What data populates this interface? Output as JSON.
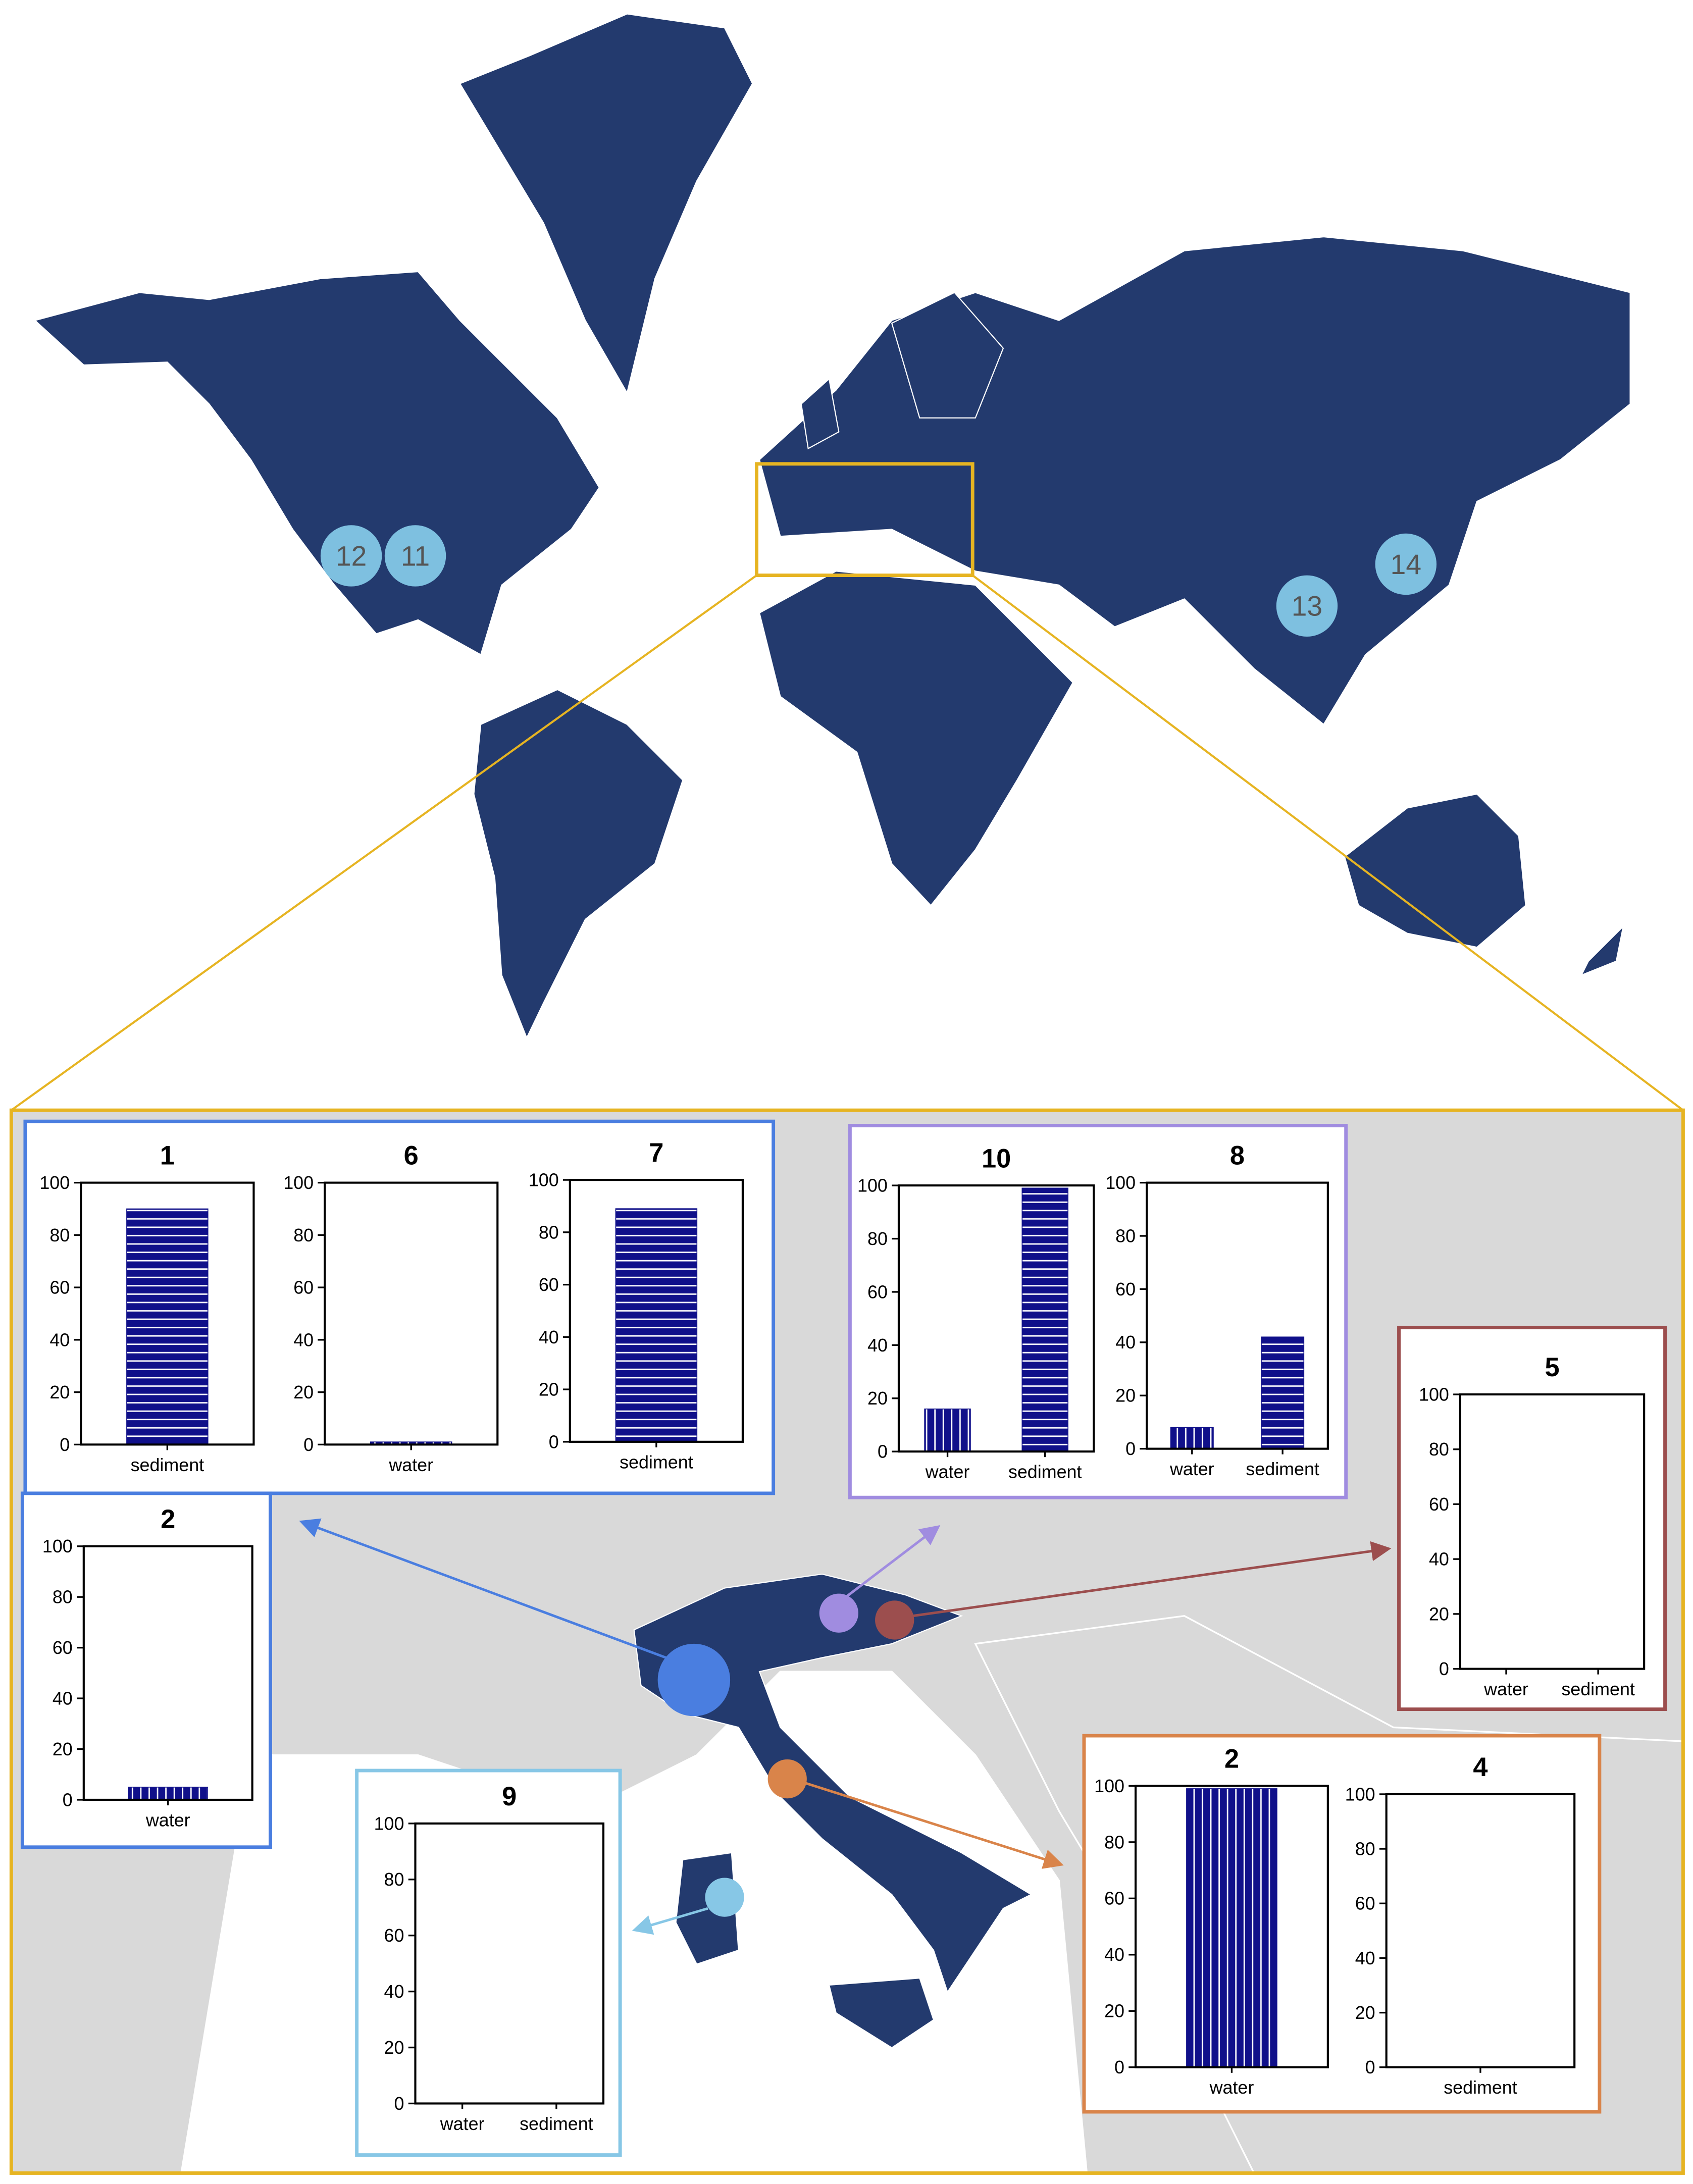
{
  "map": {
    "markers": [
      {
        "label": "12"
      },
      {
        "label": "11"
      },
      {
        "label": "13"
      },
      {
        "label": "14"
      }
    ]
  },
  "chart_data": [
    {
      "type": "bar",
      "title": "1",
      "categories": [
        "sediment"
      ],
      "values": [
        90
      ],
      "hatch": [
        "horizontal"
      ],
      "color": "#10108a",
      "ylim": [
        0,
        100
      ],
      "yticks": [
        0,
        20,
        40,
        60,
        80,
        100
      ]
    },
    {
      "type": "bar",
      "title": "6",
      "categories": [
        "water"
      ],
      "values": [
        1
      ],
      "hatch": [
        "vertical"
      ],
      "color": "#10108a",
      "ylim": [
        0,
        100
      ],
      "yticks": [
        0,
        20,
        40,
        60,
        80,
        100
      ]
    },
    {
      "type": "bar",
      "title": "7",
      "categories": [
        "sediment"
      ],
      "values": [
        89
      ],
      "hatch": [
        "horizontal"
      ],
      "color": "#10108a",
      "ylim": [
        0,
        100
      ],
      "yticks": [
        0,
        20,
        40,
        60,
        80,
        100
      ]
    },
    {
      "type": "bar",
      "title": "2",
      "categories": [
        "water"
      ],
      "values": [
        5
      ],
      "hatch": [
        "vertical"
      ],
      "color": "#10108a",
      "ylim": [
        0,
        100
      ],
      "yticks": [
        0,
        20,
        40,
        60,
        80,
        100
      ]
    },
    {
      "type": "bar",
      "title": "10",
      "categories": [
        "water",
        "sediment"
      ],
      "values": [
        16,
        99
      ],
      "hatch": [
        "vertical",
        "horizontal"
      ],
      "color": "#10108a",
      "ylim": [
        0,
        100
      ],
      "yticks": [
        0,
        20,
        40,
        60,
        80,
        100
      ]
    },
    {
      "type": "bar",
      "title": "8",
      "categories": [
        "water",
        "sediment"
      ],
      "values": [
        8,
        42
      ],
      "hatch": [
        "vertical",
        "horizontal"
      ],
      "color": "#10108a",
      "ylim": [
        0,
        100
      ],
      "yticks": [
        0,
        20,
        40,
        60,
        80,
        100
      ]
    },
    {
      "type": "bar",
      "title": "5",
      "categories": [
        "water",
        "sediment"
      ],
      "values": [
        0,
        0
      ],
      "hatch": [
        "vertical",
        "horizontal"
      ],
      "color": "#10108a",
      "ylim": [
        0,
        100
      ],
      "yticks": [
        0,
        20,
        40,
        60,
        80,
        100
      ]
    },
    {
      "type": "bar",
      "title": "2",
      "categories": [
        "water"
      ],
      "values": [
        99
      ],
      "hatch": [
        "vertical"
      ],
      "color": "#10108a",
      "ylim": [
        0,
        100
      ],
      "yticks": [
        0,
        20,
        40,
        60,
        80,
        100
      ]
    },
    {
      "type": "bar",
      "title": "4",
      "categories": [
        "sediment"
      ],
      "values": [
        0
      ],
      "hatch": [
        "horizontal"
      ],
      "color": "#10108a",
      "ylim": [
        0,
        100
      ],
      "yticks": [
        0,
        20,
        40,
        60,
        80,
        100
      ]
    },
    {
      "type": "bar",
      "title": "9",
      "categories": [
        "water",
        "sediment"
      ],
      "values": [
        0,
        0
      ],
      "hatch": [
        "vertical",
        "horizontal"
      ],
      "color": "#10108a",
      "ylim": [
        0,
        100
      ],
      "yticks": [
        0,
        20,
        40,
        60,
        80,
        100
      ]
    }
  ]
}
